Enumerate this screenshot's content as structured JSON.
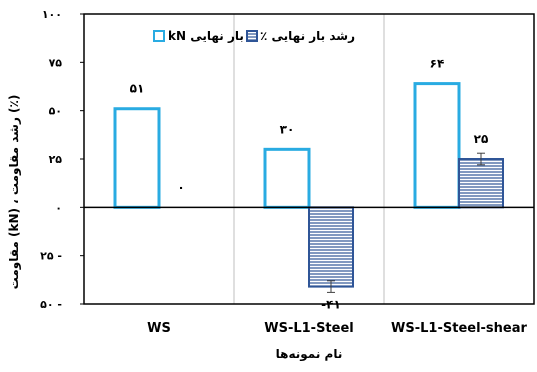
{
  "chart_data": {
    "type": "bar",
    "categories": [
      "WS",
      "WS-L1-Steel",
      "WS-L1-Steel-shear"
    ],
    "series": [
      {
        "name": "بار نهایی kN",
        "values": [
          51,
          30,
          64
        ],
        "labels": [
          "۵۱",
          "۳۰",
          "۶۴"
        ],
        "style": "outline",
        "color": "#29abe2"
      },
      {
        "name": "رشد بار نهایی ٪",
        "values": [
          0,
          -41,
          25
        ],
        "labels": [
          "۰",
          "-۴۱",
          "۲۵"
        ],
        "style": "hatched",
        "color": "#2f5597",
        "error": [
          null,
          3,
          3
        ]
      }
    ],
    "ylim": [
      -50,
      100
    ],
    "yticks": [
      100,
      75,
      50,
      25,
      0,
      -25,
      -50
    ],
    "ytick_labels": [
      "۱۰۰",
      "۷۵",
      "۵۰",
      "۲۵",
      "۰",
      "۲۵ -",
      "۵۰ -"
    ],
    "xlabel": "نام نمونه‌ها",
    "ylabel": "مقاومت (kN) ، رشد مقاومت (٪)",
    "legend": {
      "position": "top-left",
      "label_load": "بار نهایی kN",
      "label_growth": "رشد بار نهایی ٪"
    },
    "grid": {
      "vertical": true,
      "horizontal": false
    }
  }
}
